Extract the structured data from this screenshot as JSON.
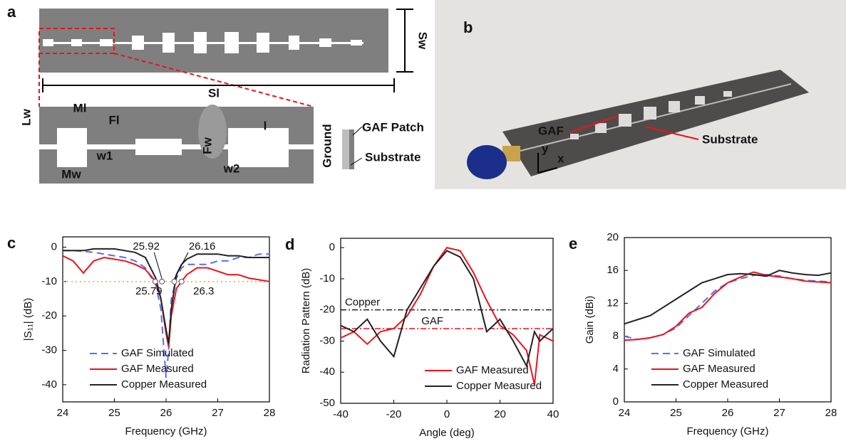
{
  "panel_a": {
    "label": "a",
    "labels": [
      "Sw",
      "Sl",
      "Ml",
      "Lw",
      "Fl",
      "w1",
      "Fw",
      "l",
      "w2",
      "Mw",
      "Ground",
      "GAF Patch",
      "Substrate"
    ]
  },
  "panel_b": {
    "label": "b",
    "labels": [
      "GAF",
      "Substrate",
      "y",
      "x"
    ]
  },
  "chart_data": [
    {
      "type": "line",
      "label": "c",
      "x_label": "Frequency (GHz)",
      "y_label": "|S₁₁| (dB)",
      "x": [
        24,
        24.2,
        24.4,
        24.6,
        24.8,
        25,
        25.2,
        25.4,
        25.6,
        25.8,
        25.9,
        26,
        26.05,
        26.1,
        26.2,
        26.3,
        26.4,
        26.6,
        26.8,
        27,
        27.2,
        27.4,
        27.6,
        27.8,
        28
      ],
      "series": [
        {
          "name": "GAF Simulated",
          "color": "#5b6cf0",
          "linestyle": "dashed",
          "values": [
            -1,
            -1,
            -1.2,
            -1.5,
            -2,
            -2.5,
            -3,
            -4,
            -6,
            -11,
            -18,
            -38,
            -30,
            -15,
            -9,
            -6,
            -5,
            -5,
            -5,
            -4,
            -4,
            -3,
            -3,
            -2,
            -2
          ]
        },
        {
          "name": "GAF Measured",
          "color": "#e8141c",
          "linestyle": "solid",
          "values": [
            -2.5,
            -4,
            -7.5,
            -4,
            -3,
            -3.5,
            -4,
            -5,
            -6.5,
            -10,
            -15,
            -25,
            -29,
            -20,
            -12,
            -10,
            -8,
            -6,
            -6,
            -7,
            -8,
            -8,
            -9,
            -9.5,
            -10
          ]
        },
        {
          "name": "Copper Measured",
          "color": "#222222",
          "linestyle": "solid",
          "values": [
            -1,
            -1,
            -1,
            -0.5,
            -0.5,
            -0.5,
            -1,
            -1.5,
            -3,
            -9,
            -15,
            -24,
            -28,
            -18,
            -8,
            -5,
            -3.5,
            -2,
            -2,
            -2,
            -2.5,
            -2.5,
            -3,
            -3,
            -3
          ]
        }
      ],
      "reference_lines": [
        {
          "value": -10,
          "color": "#f5a623",
          "linestyle": "dotted"
        }
      ],
      "markers": [
        25.92,
        26.16,
        25.79,
        26.3
      ],
      "xlim": [
        24,
        28
      ],
      "ylim": [
        -45,
        3
      ],
      "xticks": [
        24,
        25,
        26,
        27,
        28
      ],
      "yticks": [
        0,
        -10,
        -20,
        -30,
        -40
      ],
      "legend": "lower center"
    },
    {
      "type": "line",
      "label": "d",
      "x_label": "Angle (deg)",
      "y_label": "Radiation Pattern (dB)",
      "x": [
        -40,
        -35,
        -30,
        -25,
        -20,
        -15,
        -10,
        -5,
        0,
        5,
        10,
        15,
        20,
        25,
        30,
        33,
        35,
        40
      ],
      "series": [
        {
          "name": "GAF Measured",
          "color": "#e8141c",
          "linestyle": "solid",
          "values": [
            -29,
            -27,
            -31,
            -27,
            -26,
            -22,
            -15,
            -6,
            0,
            -1,
            -8,
            -17,
            -25,
            -28,
            -33,
            -44,
            -28,
            -30
          ]
        },
        {
          "name": "Copper Measured",
          "color": "#222222",
          "linestyle": "solid",
          "values": [
            -25,
            -27,
            -23,
            -30,
            -35,
            -20,
            -13,
            -6,
            -1,
            -3,
            -10,
            -27,
            -23,
            -30,
            -38,
            -27,
            -30,
            -26
          ]
        }
      ],
      "reference_lines": [
        {
          "value": -20,
          "color": "#222222",
          "linestyle": "dashdot",
          "label": "Copper"
        },
        {
          "value": -26,
          "color": "#e8141c",
          "linestyle": "dashdot",
          "label": "GAF"
        }
      ],
      "xlim": [
        -40,
        40
      ],
      "ylim": [
        -50,
        3
      ],
      "xticks": [
        -40,
        -20,
        0,
        20,
        40
      ],
      "yticks": [
        0,
        -10,
        -20,
        -30,
        -40,
        -50
      ],
      "legend": "lower right"
    },
    {
      "type": "line",
      "label": "e",
      "x_label": "Frequency (GHz)",
      "y_label": "Gain (dBi)",
      "x": [
        24,
        24.25,
        24.5,
        24.75,
        25,
        25.25,
        25.5,
        25.75,
        26,
        26.25,
        26.5,
        26.75,
        27,
        27.25,
        27.5,
        27.75,
        28
      ],
      "series": [
        {
          "name": "GAF Simulated",
          "color": "#5b6cf0",
          "linestyle": "dashed",
          "values": [
            8,
            7.6,
            7.8,
            8.2,
            9,
            10.5,
            12,
            13.5,
            14.5,
            15,
            15.4,
            15.5,
            15.3,
            15,
            14.8,
            14.7,
            14.6
          ]
        },
        {
          "name": "GAF Measured",
          "color": "#e8141c",
          "linestyle": "solid",
          "values": [
            7.5,
            7.6,
            7.8,
            8.2,
            9.2,
            10.8,
            11.5,
            13.2,
            14.5,
            15.2,
            15.8,
            15.4,
            15.2,
            15,
            14.7,
            14.6,
            14.5
          ]
        },
        {
          "name": "Copper Measured",
          "color": "#222222",
          "linestyle": "solid",
          "values": [
            9.5,
            10,
            10.5,
            11.5,
            12.5,
            13.5,
            14.5,
            15,
            15.5,
            15.6,
            15.5,
            15.3,
            16,
            15.7,
            15.5,
            15.4,
            15.7
          ]
        }
      ],
      "xlim": [
        24,
        28
      ],
      "ylim": [
        0,
        20
      ],
      "xticks": [
        24,
        25,
        26,
        27,
        28
      ],
      "yticks": [
        0,
        4,
        8,
        12,
        16,
        20
      ],
      "legend": "lower center"
    }
  ]
}
